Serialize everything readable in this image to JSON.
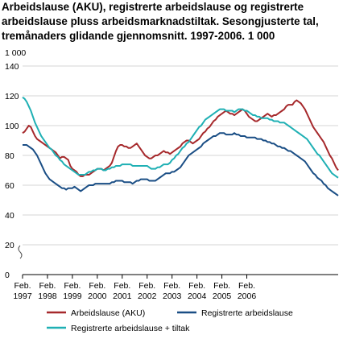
{
  "chart_data": {
    "type": "line",
    "title": "Arbeidslause (AKU), registrerte arbeidslause og registrerte arbeidslause pluss arbeidsmarknadstiltak. Sesongjusterte tal, tremånaders glidande gjennomsnitt. 1997-2006. 1 000",
    "ylabel": "1 000",
    "xlabel": "",
    "ylim": [
      0,
      140
    ],
    "yticks": [
      0,
      20,
      40,
      60,
      80,
      100,
      120,
      140
    ],
    "axis_break": true,
    "grid": "horizontal",
    "legend_position": "bottom",
    "x_ticks": [
      {
        "line1": "Feb.",
        "line2": "1997"
      },
      {
        "line1": "Feb.",
        "line2": "1998"
      },
      {
        "line1": "Feb.",
        "line2": "1999"
      },
      {
        "line1": "Feb.",
        "line2": "2000"
      },
      {
        "line1": "Feb.",
        "line2": "2001"
      },
      {
        "line1": "Feb.",
        "line2": "2002"
      },
      {
        "line1": "Feb.",
        "line2": "2003"
      },
      {
        "line1": "Feb.",
        "line2": "2004"
      },
      {
        "line1": "Feb.",
        "line2": "2005"
      },
      {
        "line1": "Feb.",
        "line2": "2006"
      }
    ],
    "x_start": "Feb. 1997",
    "x_end": "Dec. 2006",
    "series": [
      {
        "name": "Arbeidslause (AKU)",
        "color": "#a6292c",
        "values": [
          95,
          96,
          98,
          100,
          99,
          96,
          93,
          91,
          90,
          89,
          88,
          87,
          86,
          85,
          84,
          83,
          82,
          80,
          78,
          79,
          79,
          78,
          77,
          73,
          71,
          70,
          69,
          67,
          66,
          66,
          67,
          67,
          67,
          68,
          69,
          70,
          71,
          71,
          71,
          70,
          71,
          72,
          73,
          75,
          79,
          83,
          86,
          87,
          87,
          86,
          86,
          85,
          85,
          86,
          87,
          88,
          86,
          84,
          82,
          80,
          79,
          78,
          78,
          79,
          80,
          80,
          81,
          82,
          83,
          82,
          82,
          81,
          82,
          83,
          84,
          85,
          86,
          88,
          89,
          90,
          90,
          89,
          88,
          89,
          90,
          91,
          93,
          95,
          96,
          98,
          99,
          101,
          103,
          104,
          106,
          107,
          108,
          109,
          110,
          109,
          108,
          108,
          107,
          108,
          109,
          110,
          111,
          110,
          108,
          106,
          105,
          104,
          103,
          103,
          104,
          105,
          106,
          107,
          108,
          107,
          106,
          107,
          107,
          108,
          109,
          110,
          111,
          113,
          114,
          114,
          114,
          116,
          117,
          116,
          115,
          113,
          111,
          108,
          105,
          102,
          99,
          97,
          95,
          93,
          91,
          89,
          86,
          83,
          80,
          78,
          75,
          72,
          70
        ]
      },
      {
        "name": "Registrerte arbeidslause",
        "color": "#1a4e85",
        "values": [
          87,
          87,
          87,
          86,
          85,
          84,
          82,
          80,
          77,
          74,
          71,
          68,
          66,
          64,
          63,
          62,
          61,
          60,
          59,
          58,
          58,
          57,
          58,
          58,
          58,
          59,
          58,
          57,
          56,
          57,
          58,
          59,
          60,
          60,
          60,
          61,
          61,
          61,
          61,
          61,
          61,
          61,
          61,
          62,
          62,
          63,
          63,
          63,
          63,
          62,
          62,
          62,
          62,
          61,
          62,
          63,
          63,
          64,
          64,
          64,
          64,
          63,
          63,
          63,
          63,
          64,
          65,
          66,
          67,
          68,
          68,
          68,
          69,
          69,
          70,
          71,
          72,
          74,
          76,
          78,
          80,
          81,
          82,
          83,
          84,
          85,
          86,
          88,
          89,
          90,
          91,
          92,
          93,
          93,
          94,
          95,
          95,
          95,
          94,
          94,
          94,
          94,
          95,
          94,
          94,
          93,
          93,
          93,
          92,
          92,
          92,
          92,
          92,
          91,
          91,
          91,
          90,
          90,
          89,
          89,
          88,
          88,
          87,
          86,
          86,
          85,
          85,
          84,
          83,
          83,
          82,
          81,
          80,
          79,
          78,
          77,
          76,
          74,
          72,
          70,
          68,
          67,
          65,
          64,
          63,
          61,
          60,
          58,
          57,
          56,
          55,
          54,
          53
        ]
      },
      {
        "name": "Registrerte arbeidslause + tiltak",
        "color": "#1fb0b4",
        "values": [
          119,
          118,
          116,
          113,
          110,
          106,
          102,
          99,
          96,
          93,
          91,
          89,
          87,
          85,
          84,
          82,
          80,
          79,
          77,
          76,
          74,
          73,
          72,
          71,
          70,
          69,
          68,
          67,
          67,
          67,
          67,
          68,
          69,
          69,
          70,
          70,
          71,
          71,
          71,
          70,
          70,
          71,
          71,
          72,
          72,
          73,
          73,
          73,
          74,
          74,
          74,
          74,
          74,
          73,
          73,
          73,
          73,
          73,
          73,
          73,
          73,
          72,
          71,
          71,
          71,
          72,
          72,
          73,
          74,
          74,
          74,
          75,
          77,
          78,
          80,
          81,
          83,
          85,
          86,
          88,
          89,
          91,
          93,
          95,
          97,
          99,
          100,
          102,
          104,
          105,
          106,
          107,
          108,
          109,
          110,
          111,
          111,
          111,
          110,
          110,
          110,
          110,
          109,
          110,
          111,
          111,
          111,
          110,
          110,
          109,
          108,
          107,
          107,
          106,
          106,
          105,
          105,
          105,
          105,
          104,
          104,
          103,
          103,
          103,
          102,
          102,
          102,
          101,
          100,
          99,
          98,
          97,
          96,
          95,
          94,
          93,
          92,
          91,
          89,
          87,
          85,
          83,
          81,
          80,
          78,
          76,
          74,
          72,
          70,
          68,
          67,
          66,
          65
        ]
      }
    ]
  }
}
